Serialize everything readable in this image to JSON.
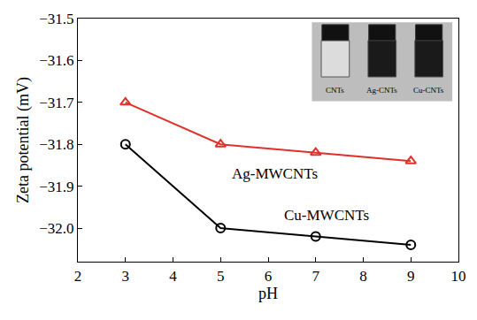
{
  "chart_data": {
    "type": "line",
    "x_label": "pH",
    "y_label": "Zeta potential (mV)",
    "x": [
      3,
      5,
      7,
      9
    ],
    "series": [
      {
        "name": "Ag-MWCNTs",
        "color": "#e0302a",
        "marker": "triangle-up-open",
        "line_style": "solid",
        "values": [
          -31.7,
          -31.8,
          -31.82,
          -31.84
        ]
      },
      {
        "name": "Cu-MWCNTs",
        "color": "#000000",
        "marker": "circle-open",
        "line_style": "solid",
        "values": [
          -31.8,
          -32.0,
          -32.02,
          -32.04
        ]
      }
    ],
    "annotations": [
      {
        "text": "Ag-MWCNTs",
        "x": 5.2,
        "y": -31.87
      },
      {
        "text": "Cu-MWCNTs",
        "x": 6.3,
        "y": -31.97
      }
    ],
    "inset_labels": [
      "CNTs",
      "Ag-CNTs",
      "Cu-CNTs"
    ],
    "xlim": [
      2,
      10
    ],
    "xticks": [
      2,
      3,
      4,
      5,
      6,
      7,
      8,
      9,
      10
    ],
    "ylim": [
      -32.08,
      -31.5
    ],
    "yticks": [
      {
        "value": -32.0,
        "label": "−32.0"
      },
      {
        "value": -31.9,
        "label": "−31.9"
      },
      {
        "value": -31.8,
        "label": "−31.8"
      },
      {
        "value": -31.7,
        "label": "−31.7"
      },
      {
        "value": -31.6,
        "label": "−31.6"
      },
      {
        "value": -31.5,
        "label": "−31.5"
      }
    ],
    "grid": false,
    "legend": "none"
  }
}
